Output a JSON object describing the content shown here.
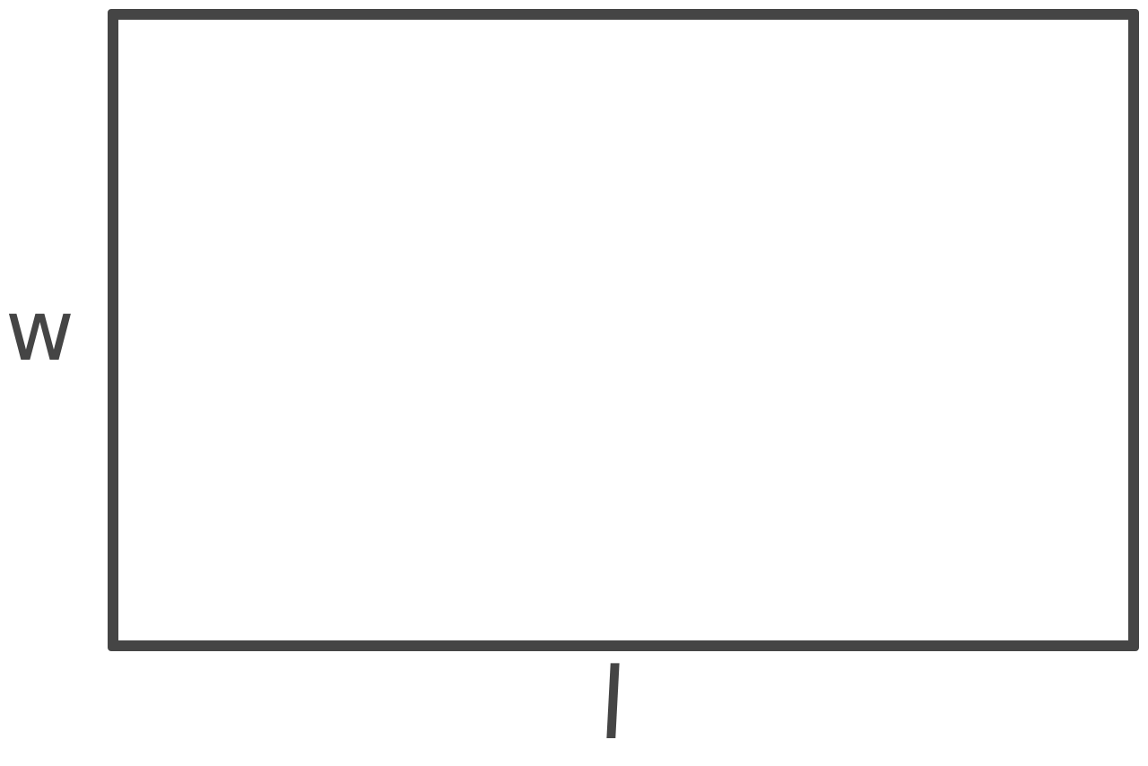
{
  "diagram": {
    "shape": "rectangle",
    "labels": {
      "side": "w",
      "bottom": "l"
    },
    "colors": {
      "stroke": "#454545",
      "text": "#454545",
      "background": "#ffffff"
    }
  }
}
